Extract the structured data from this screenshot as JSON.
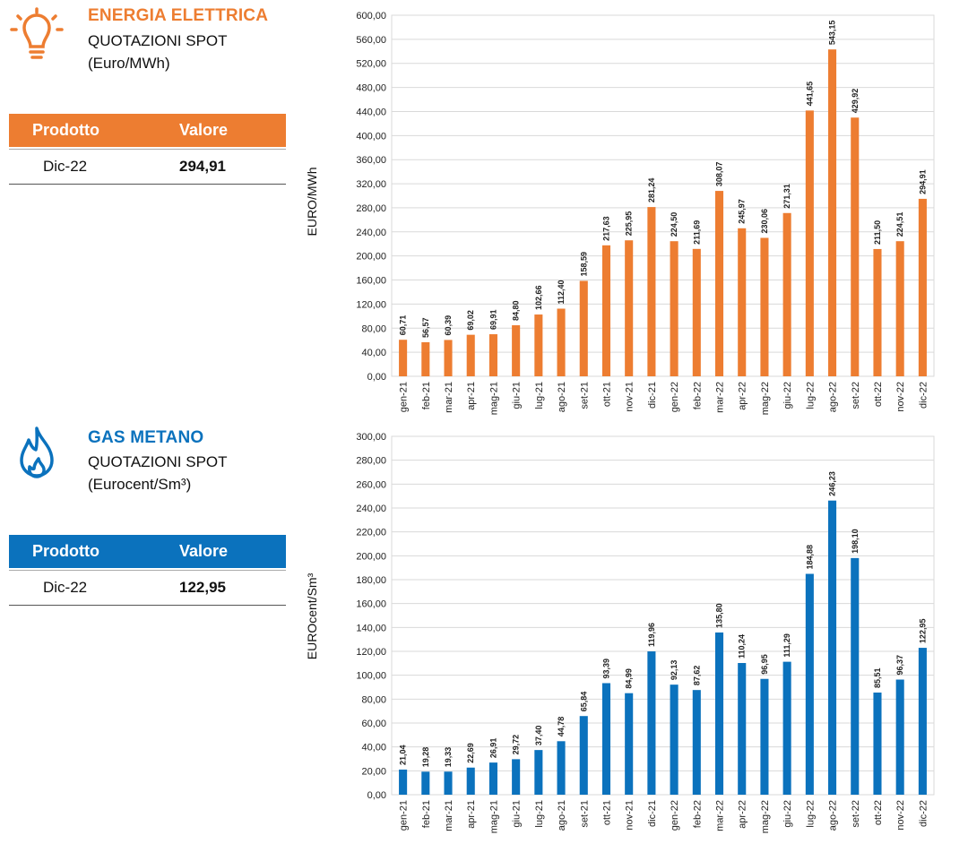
{
  "colors": {
    "energy": "#ED7D31",
    "gas": "#0B72BD"
  },
  "energy": {
    "icon": "lightbulb-icon",
    "title": "ENERGIA ELETTRICA",
    "subtitle1": "QUOTAZIONI SPOT",
    "subtitle2": "(Euro/MWh)",
    "table": {
      "head_product": "Prodotto",
      "head_value": "Valore",
      "product": "Dic-22",
      "value": "294,91"
    }
  },
  "gas": {
    "icon": "flame-icon",
    "title": "GAS METANO",
    "subtitle1": "QUOTAZIONI SPOT",
    "subtitle2": "(Eurocent/Sm³)",
    "table": {
      "head_product": "Prodotto",
      "head_value": "Valore",
      "product": "Dic-22",
      "value": "122,95"
    }
  },
  "chart_data": [
    {
      "type": "bar",
      "categories": [
        "gen-21",
        "feb-21",
        "mar-21",
        "apr-21",
        "mag-21",
        "giu-21",
        "lug-21",
        "ago-21",
        "set-21",
        "ott-21",
        "nov-21",
        "dic-21",
        "gen-22",
        "feb-22",
        "mar-22",
        "apr-22",
        "mag-22",
        "giu-22",
        "lug-22",
        "ago-22",
        "set-22",
        "ott-22",
        "nov-22",
        "dic-22"
      ],
      "values": [
        60.71,
        56.57,
        60.39,
        69.02,
        69.91,
        84.8,
        102.66,
        112.4,
        158.59,
        217.63,
        225.95,
        281.24,
        224.5,
        211.69,
        308.07,
        245.97,
        230.06,
        271.31,
        441.65,
        543.15,
        429.92,
        211.5,
        224.51,
        294.91
      ],
      "labels": [
        "60,71",
        "56,57",
        "60,39",
        "69,02",
        "69,91",
        "84,80",
        "102,66",
        "112,40",
        "158,59",
        "217,63",
        "225,95",
        "281,24",
        "224,50",
        "211,69",
        "308,07",
        "245,97",
        "230,06",
        "271,31",
        "441,65",
        "543,15",
        "429,92",
        "211,50",
        "224,51",
        "294,91"
      ],
      "ylabel": "EURO/MWh",
      "ylim": [
        0,
        600
      ],
      "yticks": [
        "0,00",
        "40,00",
        "80,00",
        "120,00",
        "160,00",
        "200,00",
        "240,00",
        "280,00",
        "320,00",
        "360,00",
        "400,00",
        "440,00",
        "480,00",
        "520,00",
        "560,00",
        "600,00"
      ],
      "ystep": 40,
      "grid": true,
      "color": "#ED7D31"
    },
    {
      "type": "bar",
      "categories": [
        "gen-21",
        "feb-21",
        "mar-21",
        "apr-21",
        "mag-21",
        "giu-21",
        "lug-21",
        "ago-21",
        "set-21",
        "ott-21",
        "nov-21",
        "dic-21",
        "gen-22",
        "feb-22",
        "mar-22",
        "apr-22",
        "mag-22",
        "giu-22",
        "lug-22",
        "ago-22",
        "set-22",
        "ott-22",
        "nov-22",
        "dic-22"
      ],
      "values": [
        21.04,
        19.28,
        19.33,
        22.69,
        26.91,
        29.72,
        37.4,
        44.78,
        65.84,
        93.39,
        84.99,
        119.96,
        92.13,
        87.62,
        135.8,
        110.24,
        96.95,
        111.29,
        184.88,
        246.23,
        198.1,
        85.51,
        96.37,
        122.95
      ],
      "labels": [
        "21,04",
        "19,28",
        "19,33",
        "22,69",
        "26,91",
        "29,72",
        "37,40",
        "44,78",
        "65,84",
        "93,39",
        "84,99",
        "119,96",
        "92,13",
        "87,62",
        "135,80",
        "110,24",
        "96,95",
        "111,29",
        "184,88",
        "246,23",
        "198,10",
        "85,51",
        "96,37",
        "122,95"
      ],
      "ylabel": "EUROcent/Sm³",
      "ylim": [
        0,
        300
      ],
      "yticks": [
        "0,00",
        "20,00",
        "40,00",
        "60,00",
        "80,00",
        "100,00",
        "120,00",
        "140,00",
        "160,00",
        "180,00",
        "200,00",
        "220,00",
        "240,00",
        "260,00",
        "280,00",
        "300,00"
      ],
      "ystep": 20,
      "grid": true,
      "color": "#0B72BD"
    }
  ]
}
